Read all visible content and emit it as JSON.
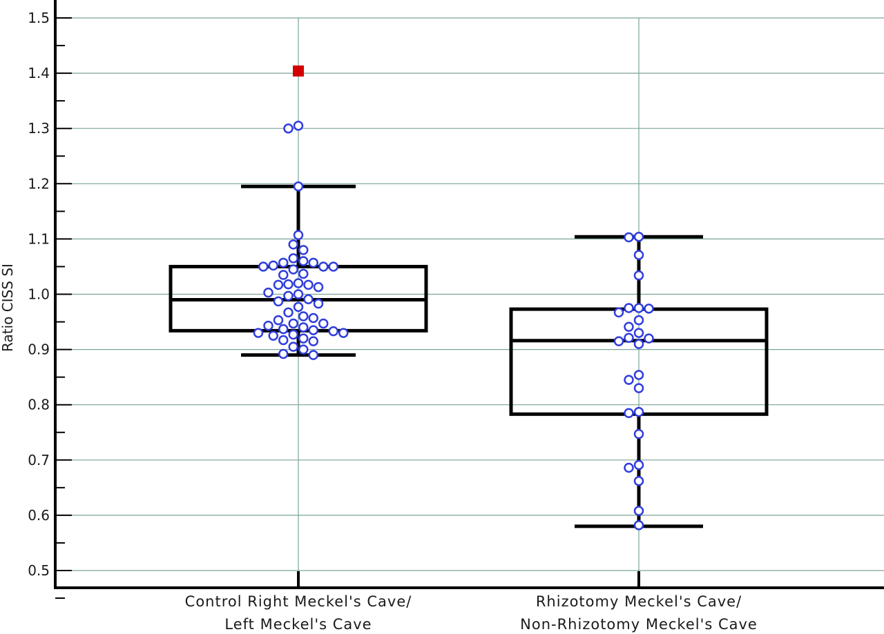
{
  "chart_data": {
    "type": "box",
    "title": "",
    "ylabel": "Ratio CISS SI",
    "xlabel": "",
    "ylim": [
      0.5,
      1.5
    ],
    "yticks": [
      "0.5",
      "0.6",
      "0.7",
      "0.8",
      "0.9",
      "1.0",
      "1.1",
      "1.2",
      "1.3",
      "1.4",
      "1.5"
    ],
    "grid": true,
    "categories": [
      {
        "line1": "Control Right Meckel's Cave/",
        "line2": "Left Meckel's Cave"
      },
      {
        "line1": "Rhizotomy Meckel's Cave/",
        "line2": "Non-Rhizotomy Meckel's Cave"
      }
    ],
    "boxes": [
      {
        "whisker_low": 0.89,
        "q1": 0.934,
        "median": 0.99,
        "q3": 1.05,
        "whisker_high": 1.195,
        "outliers": [
          1.404
        ],
        "points": [
          1.305,
          1.3,
          1.195,
          1.107,
          1.09,
          1.08,
          1.065,
          1.06,
          1.057,
          1.057,
          1.052,
          1.05,
          1.05,
          1.05,
          1.045,
          1.037,
          1.035,
          1.02,
          1.018,
          1.017,
          1.017,
          1.013,
          1.003,
          1.0,
          0.997,
          0.991,
          0.987,
          0.983,
          0.977,
          0.967,
          0.96,
          0.957,
          0.953,
          0.947,
          0.947,
          0.943,
          0.94,
          0.937,
          0.935,
          0.933,
          0.93,
          0.93,
          0.927,
          0.925,
          0.92,
          0.917,
          0.915,
          0.905,
          0.9,
          0.892,
          0.89
        ]
      },
      {
        "whisker_low": 0.58,
        "q1": 0.783,
        "median": 0.916,
        "q3": 0.973,
        "whisker_high": 1.104,
        "outliers": [],
        "points": [
          1.104,
          1.103,
          1.071,
          1.034,
          0.975,
          0.975,
          0.974,
          0.967,
          0.953,
          0.941,
          0.93,
          0.921,
          0.92,
          0.915,
          0.91,
          0.854,
          0.845,
          0.83,
          0.787,
          0.785,
          0.747,
          0.691,
          0.686,
          0.662,
          0.608,
          0.582
        ]
      }
    ],
    "colors": {
      "box": "#000000",
      "point": "#2f3ddb",
      "outlier": "#d40000",
      "grid": "#7aa39a"
    }
  }
}
